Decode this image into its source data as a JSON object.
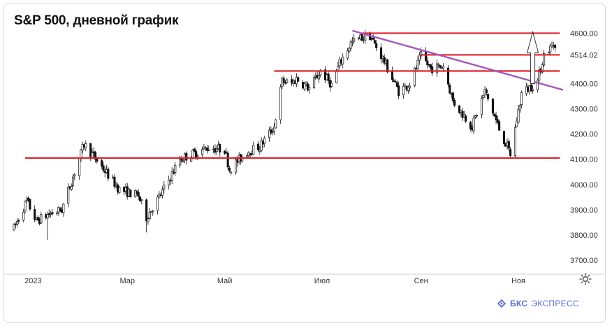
{
  "title": "S&P 500, дневной график",
  "brand": {
    "word1": "БКС",
    "word2": "ЭКСПРЕСС",
    "color": "#5b6fd8"
  },
  "icons": {
    "settings": "gear-icon",
    "brand_logo": "bks-logo-icon"
  },
  "colors": {
    "level": "#e0202e",
    "trend": "#a357b8",
    "candle": "#111111",
    "arrow": "#333333"
  },
  "chart_data": {
    "type": "candlestick",
    "title": "S&P 500, дневной график",
    "ylim": [
      3650,
      4640
    ],
    "xlim": [
      "2022-12-20",
      "2023-11-29"
    ],
    "y_ticks": [
      "4600.00",
      "4514.02",
      "4400.00",
      "4300.00",
      "4200.00",
      "4100.00",
      "4000.00",
      "3900.00",
      "3800.00",
      "3700.00"
    ],
    "y_tick_values": [
      4600,
      4514.02,
      4400,
      4300,
      4200,
      4100,
      4000,
      3900,
      3800,
      3700
    ],
    "x_ticks": [
      {
        "label": "2023",
        "date": "2023-01-01"
      },
      {
        "label": "Мар",
        "date": "2023-03-01"
      },
      {
        "label": "Май",
        "date": "2023-05-01"
      },
      {
        "label": "Июл",
        "date": "2023-07-01"
      },
      {
        "label": "Сен",
        "date": "2023-09-01"
      },
      {
        "label": "Ноя",
        "date": "2023-11-01"
      }
    ],
    "last_price": 4514.02,
    "anchors": [
      [
        "2022-12-20",
        3825
      ],
      [
        "2022-12-28",
        3935
      ],
      [
        "2023-01-03",
        3855
      ],
      [
        "2023-01-10",
        3880
      ],
      [
        "2023-01-19",
        3900
      ],
      [
        "2023-02-02",
        4160
      ],
      [
        "2023-02-10",
        4095
      ],
      [
        "2023-02-24",
        3980
      ],
      [
        "2023-03-08",
        3955
      ],
      [
        "2023-03-13",
        3870
      ],
      [
        "2023-03-22",
        3960
      ],
      [
        "2023-04-03",
        4100
      ],
      [
        "2023-04-20",
        4145
      ],
      [
        "2023-05-01",
        4140
      ],
      [
        "2023-05-04",
        4060
      ],
      [
        "2023-05-15",
        4130
      ],
      [
        "2023-05-23",
        4150
      ],
      [
        "2023-06-01",
        4230
      ],
      [
        "2023-06-06",
        4410
      ],
      [
        "2023-06-12",
        4400
      ],
      [
        "2023-06-15",
        4420
      ],
      [
        "2023-06-23",
        4380
      ],
      [
        "2023-06-30",
        4450
      ],
      [
        "2023-07-07",
        4395
      ],
      [
        "2023-07-12",
        4480
      ],
      [
        "2023-07-19",
        4560
      ],
      [
        "2023-07-25",
        4580
      ],
      [
        "2023-07-31",
        4590
      ],
      [
        "2023-08-08",
        4500
      ],
      [
        "2023-08-18",
        4370
      ],
      [
        "2023-08-25",
        4400
      ],
      [
        "2023-09-01",
        4510
      ],
      [
        "2023-09-07",
        4460
      ],
      [
        "2023-09-15",
        4470
      ],
      [
        "2023-09-21",
        4330
      ],
      [
        "2023-10-03",
        4230
      ],
      [
        "2023-10-11",
        4370
      ],
      [
        "2023-10-20",
        4220
      ],
      [
        "2023-10-27",
        4120
      ],
      [
        "2023-11-03",
        4360
      ],
      [
        "2023-11-08",
        4385
      ],
      [
        "2023-11-13",
        4410
      ],
      [
        "2023-11-17",
        4515
      ],
      [
        "2023-11-24",
        4560
      ]
    ],
    "lows": [
      [
        "2023-01-10",
        3780
      ],
      [
        "2023-03-13",
        3810
      ],
      [
        "2023-10-27",
        4105
      ]
    ],
    "horizontal_levels": [
      {
        "y": 4600,
        "from": "2023-07-26",
        "to": "2023-11-27"
      },
      {
        "y": 4514,
        "from": "2023-09-01",
        "to": "2023-11-27"
      },
      {
        "y": 4450,
        "from": "2023-06-01",
        "to": "2023-11-27"
      },
      {
        "y": 4105,
        "from": "2022-12-27",
        "to": "2023-11-27"
      }
    ],
    "trendline": {
      "from": [
        "2023-07-20",
        4610
      ],
      "to": [
        "2023-11-29",
        4375
      ]
    },
    "annotation_arrow": {
      "date": "2023-11-10",
      "from": 4400,
      "to": 4605
    }
  }
}
